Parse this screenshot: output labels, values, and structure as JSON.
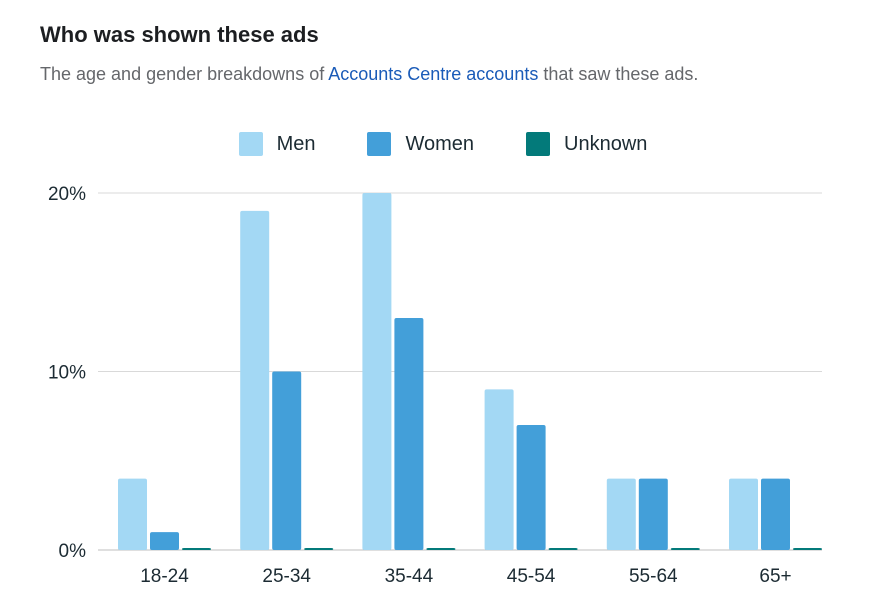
{
  "header": {
    "title": "Who was shown these ads",
    "subtitle_before": "The age and gender breakdowns of ",
    "subtitle_link": "Accounts Centre accounts",
    "subtitle_after": " that saw these ads."
  },
  "colors": {
    "Men": "#a3d8f4",
    "Women": "#439fd9",
    "Unknown": "#037a7a",
    "grid": "#d9d9d9",
    "link": "#1a5bb8"
  },
  "chart_data": {
    "type": "bar",
    "title": "Who was shown these ads",
    "xlabel": "",
    "ylabel": "",
    "categories": [
      "18-24",
      "25-34",
      "35-44",
      "45-54",
      "55-64",
      "65+"
    ],
    "series": [
      {
        "name": "Men",
        "values": [
          4,
          19,
          20,
          9,
          4,
          4
        ]
      },
      {
        "name": "Women",
        "values": [
          1,
          10,
          13,
          7,
          4,
          4
        ]
      },
      {
        "name": "Unknown",
        "values": [
          0,
          0,
          0,
          0,
          0,
          0
        ]
      }
    ],
    "ylim": [
      0,
      20
    ],
    "yticks": [
      0,
      10,
      20
    ],
    "ytick_labels": [
      "0%",
      "10%",
      "20%"
    ],
    "grid": true,
    "legend": "top-center"
  }
}
